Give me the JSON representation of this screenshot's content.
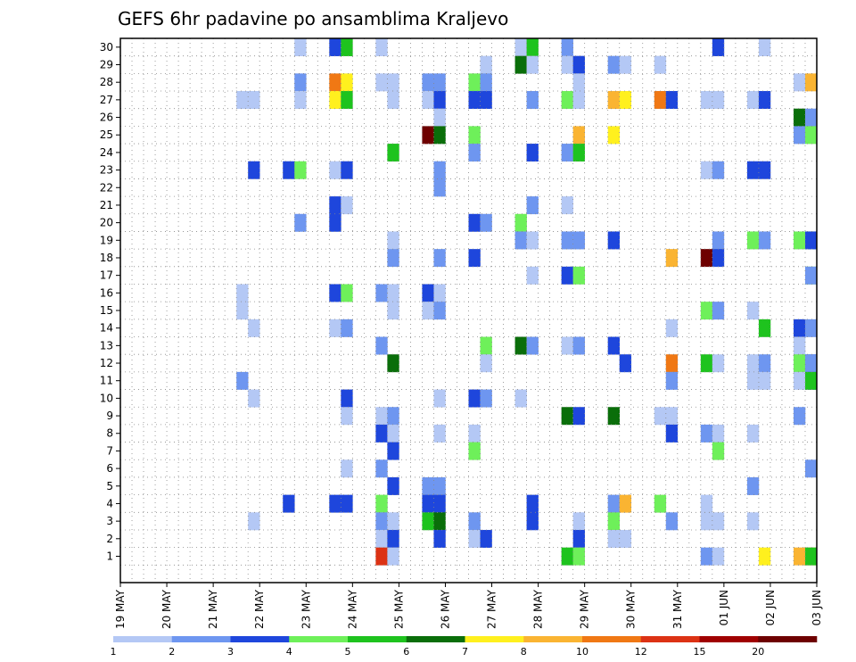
{
  "chart_data": {
    "type": "heatmap",
    "title": "GEFS 6hr padavine po ansamblima Kraljevo",
    "xlabel": "",
    "ylabel": "",
    "y_ticks": [
      1,
      2,
      3,
      4,
      5,
      6,
      7,
      8,
      9,
      10,
      11,
      12,
      13,
      14,
      15,
      16,
      17,
      18,
      19,
      20,
      21,
      22,
      23,
      24,
      25,
      26,
      27,
      28,
      29,
      30
    ],
    "x_ticks": [
      "19 MAY",
      "20 MAY",
      "21 MAY",
      "22 MAY",
      "23 MAY",
      "24 MAY",
      "25 MAY",
      "26 MAY",
      "27 MAY",
      "28 MAY",
      "29 MAY",
      "30 MAY",
      "31 MAY",
      "01 JUN",
      "02 JUN",
      "03 JUN"
    ],
    "time_steps": 60,
    "members": 31,
    "grid": true,
    "colorbar": {
      "position": "bottom",
      "labels": [
        "1",
        "2",
        "3",
        "4",
        "5",
        "6",
        "7",
        "8",
        "10",
        "12",
        "15",
        "20"
      ],
      "colors": [
        "#b4c8f5",
        "#6e96f0",
        "#1e46dc",
        "#6ef05a",
        "#1ec31e",
        "#0a6e0a",
        "#fff01e",
        "#fab432",
        "#f07814",
        "#dc3214",
        "#a00000",
        "#6e0000"
      ]
    },
    "cells": [
      [
        8,
        30,
        1
      ],
      [
        9,
        30,
        3
      ],
      [
        10,
        30,
        5
      ],
      [
        11,
        30,
        1
      ],
      [
        17,
        30,
        1
      ],
      [
        18,
        30,
        5
      ],
      [
        19,
        30,
        2
      ],
      [
        26,
        30,
        3
      ],
      [
        28,
        30,
        1
      ],
      [
        16,
        29,
        1
      ],
      [
        17,
        29,
        6
      ],
      [
        18,
        29,
        1
      ],
      [
        19,
        29,
        1
      ],
      [
        20,
        29,
        3
      ],
      [
        21,
        29,
        2
      ],
      [
        22,
        29,
        1
      ],
      [
        23,
        29,
        1
      ],
      [
        8,
        28,
        2
      ],
      [
        9,
        28,
        9
      ],
      [
        10,
        28,
        7
      ],
      [
        11,
        28,
        1
      ],
      [
        12,
        28,
        1
      ],
      [
        13,
        28,
        2
      ],
      [
        14,
        28,
        2
      ],
      [
        15,
        28,
        4
      ],
      [
        16,
        28,
        2
      ],
      [
        20,
        28,
        1
      ],
      [
        29,
        28,
        1
      ],
      [
        30,
        28,
        8
      ],
      [
        5,
        27,
        1
      ],
      [
        6,
        27,
        1
      ],
      [
        8,
        27,
        1
      ],
      [
        9,
        27,
        7
      ],
      [
        10,
        27,
        5
      ],
      [
        12,
        27,
        1
      ],
      [
        13,
        27,
        1
      ],
      [
        14,
        27,
        3
      ],
      [
        15,
        27,
        3
      ],
      [
        16,
        27,
        3
      ],
      [
        18,
        27,
        2
      ],
      [
        19,
        27,
        4
      ],
      [
        20,
        27,
        1
      ],
      [
        21,
        27,
        8
      ],
      [
        22,
        27,
        7
      ],
      [
        23,
        27,
        9
      ],
      [
        24,
        27,
        3
      ],
      [
        25,
        27,
        1
      ],
      [
        26,
        27,
        1
      ],
      [
        27,
        27,
        1
      ],
      [
        28,
        27,
        3
      ],
      [
        14,
        26,
        1
      ],
      [
        29,
        26,
        6
      ],
      [
        30,
        26,
        2
      ],
      [
        13,
        25,
        12
      ],
      [
        14,
        25,
        6
      ],
      [
        15,
        25,
        4
      ],
      [
        20,
        25,
        8
      ],
      [
        21,
        25,
        7
      ],
      [
        29,
        25,
        2
      ],
      [
        30,
        25,
        4
      ],
      [
        12,
        24,
        5
      ],
      [
        15,
        24,
        2
      ],
      [
        18,
        24,
        3
      ],
      [
        19,
        24,
        2
      ],
      [
        20,
        24,
        5
      ],
      [
        6,
        23,
        3
      ],
      [
        7,
        23,
        3
      ],
      [
        8,
        23,
        4
      ],
      [
        9,
        23,
        1
      ],
      [
        10,
        23,
        3
      ],
      [
        14,
        23,
        2
      ],
      [
        25,
        23,
        1
      ],
      [
        26,
        23,
        2
      ],
      [
        27,
        23,
        3
      ],
      [
        28,
        23,
        3
      ],
      [
        14,
        22,
        2
      ],
      [
        9,
        21,
        3
      ],
      [
        10,
        21,
        1
      ],
      [
        18,
        21,
        2
      ],
      [
        19,
        21,
        1
      ],
      [
        8,
        20,
        2
      ],
      [
        9,
        20,
        3
      ],
      [
        15,
        20,
        3
      ],
      [
        16,
        20,
        2
      ],
      [
        17,
        20,
        4
      ],
      [
        12,
        19,
        1
      ],
      [
        17,
        19,
        2
      ],
      [
        18,
        19,
        1
      ],
      [
        19,
        19,
        2
      ],
      [
        20,
        19,
        2
      ],
      [
        21,
        19,
        3
      ],
      [
        26,
        19,
        2
      ],
      [
        27,
        19,
        4
      ],
      [
        28,
        19,
        2
      ],
      [
        29,
        19,
        4
      ],
      [
        30,
        19,
        4
      ],
      [
        31,
        19,
        3
      ],
      [
        12,
        18,
        2
      ],
      [
        14,
        18,
        2
      ],
      [
        15,
        18,
        3
      ],
      [
        24,
        18,
        8
      ],
      [
        25,
        18,
        12
      ],
      [
        26,
        18,
        3
      ],
      [
        18,
        17,
        1
      ],
      [
        19,
        17,
        3
      ],
      [
        20,
        17,
        4
      ],
      [
        30,
        17,
        4
      ],
      [
        31,
        17,
        2
      ],
      [
        5,
        16,
        1
      ],
      [
        9,
        16,
        3
      ],
      [
        10,
        16,
        4
      ],
      [
        11,
        16,
        2
      ],
      [
        12,
        16,
        1
      ],
      [
        13,
        16,
        3
      ],
      [
        14,
        16,
        1
      ],
      [
        5,
        15,
        1
      ],
      [
        12,
        15,
        1
      ],
      [
        13,
        15,
        1
      ],
      [
        14,
        15,
        2
      ],
      [
        25,
        15,
        4
      ],
      [
        26,
        15,
        2
      ],
      [
        27,
        15,
        1
      ],
      [
        6,
        14,
        1
      ],
      [
        9,
        14,
        1
      ],
      [
        10,
        14,
        2
      ],
      [
        24,
        14,
        1
      ],
      [
        28,
        14,
        5
      ],
      [
        29,
        14,
        3
      ],
      [
        30,
        14,
        2
      ],
      [
        11,
        13,
        2
      ],
      [
        16,
        13,
        4
      ],
      [
        17,
        13,
        6
      ],
      [
        18,
        13,
        2
      ],
      [
        19,
        13,
        1
      ],
      [
        20,
        13,
        2
      ],
      [
        21,
        13,
        3
      ],
      [
        29,
        13,
        1
      ],
      [
        12,
        12,
        6
      ],
      [
        16,
        12,
        1
      ],
      [
        22,
        12,
        3
      ],
      [
        24,
        12,
        9
      ],
      [
        25,
        12,
        5
      ],
      [
        26,
        12,
        1
      ],
      [
        27,
        12,
        1
      ],
      [
        28,
        12,
        2
      ],
      [
        29,
        12,
        4
      ],
      [
        30,
        12,
        3
      ],
      [
        31,
        12,
        2
      ],
      [
        31,
        11,
        3
      ],
      [
        5,
        11,
        2
      ],
      [
        24,
        11,
        2
      ],
      [
        27,
        11,
        1
      ],
      [
        28,
        11,
        1
      ],
      [
        29,
        11,
        1
      ],
      [
        30,
        11,
        5
      ],
      [
        6,
        10,
        1
      ],
      [
        10,
        10,
        3
      ],
      [
        14,
        10,
        1
      ],
      [
        15,
        10,
        3
      ],
      [
        16,
        10,
        2
      ],
      [
        17,
        10,
        1
      ],
      [
        10,
        9,
        1
      ],
      [
        11,
        9,
        1
      ],
      [
        12,
        9,
        2
      ],
      [
        19,
        9,
        6
      ],
      [
        20,
        9,
        3
      ],
      [
        21,
        9,
        6
      ],
      [
        23,
        9,
        1
      ],
      [
        24,
        9,
        1
      ],
      [
        29,
        9,
        2
      ],
      [
        11,
        8,
        3
      ],
      [
        12,
        8,
        1
      ],
      [
        14,
        8,
        1
      ],
      [
        15,
        8,
        1
      ],
      [
        24,
        8,
        3
      ],
      [
        25,
        8,
        2
      ],
      [
        26,
        8,
        1
      ],
      [
        27,
        8,
        1
      ],
      [
        12,
        7,
        3
      ],
      [
        15,
        7,
        4
      ],
      [
        26,
        7,
        4
      ],
      [
        10,
        6,
        1
      ],
      [
        11,
        6,
        2
      ],
      [
        31,
        6,
        2
      ],
      [
        12,
        5,
        3
      ],
      [
        13,
        5,
        2
      ],
      [
        14,
        5,
        2
      ],
      [
        27,
        5,
        2
      ],
      [
        7,
        4,
        3
      ],
      [
        9,
        4,
        3
      ],
      [
        10,
        4,
        3
      ],
      [
        11,
        4,
        4
      ],
      [
        13,
        4,
        3
      ],
      [
        14,
        4,
        3
      ],
      [
        18,
        4,
        3
      ],
      [
        21,
        4,
        2
      ],
      [
        22,
        4,
        8
      ],
      [
        23,
        4,
        4
      ],
      [
        25,
        4,
        1
      ],
      [
        6,
        3,
        1
      ],
      [
        11,
        3,
        2
      ],
      [
        12,
        3,
        1
      ],
      [
        13,
        3,
        5
      ],
      [
        14,
        3,
        6
      ],
      [
        15,
        3,
        2
      ],
      [
        18,
        3,
        3
      ],
      [
        20,
        3,
        1
      ],
      [
        21,
        3,
        4
      ],
      [
        24,
        3,
        2
      ],
      [
        25,
        3,
        1
      ],
      [
        26,
        3,
        1
      ],
      [
        27,
        3,
        1
      ],
      [
        11,
        2,
        1
      ],
      [
        12,
        2,
        3
      ],
      [
        14,
        2,
        3
      ],
      [
        15,
        2,
        1
      ],
      [
        16,
        2,
        3
      ],
      [
        20,
        2,
        3
      ],
      [
        21,
        2,
        1
      ],
      [
        22,
        2,
        1
      ],
      [
        11,
        1,
        10
      ],
      [
        12,
        1,
        1
      ],
      [
        19,
        1,
        5
      ],
      [
        20,
        1,
        4
      ],
      [
        25,
        1,
        2
      ],
      [
        26,
        1,
        1
      ],
      [
        28,
        1,
        7
      ],
      [
        29,
        1,
        8
      ],
      [
        30,
        1,
        8
      ],
      [
        31,
        1,
        5
      ]
    ]
  }
}
